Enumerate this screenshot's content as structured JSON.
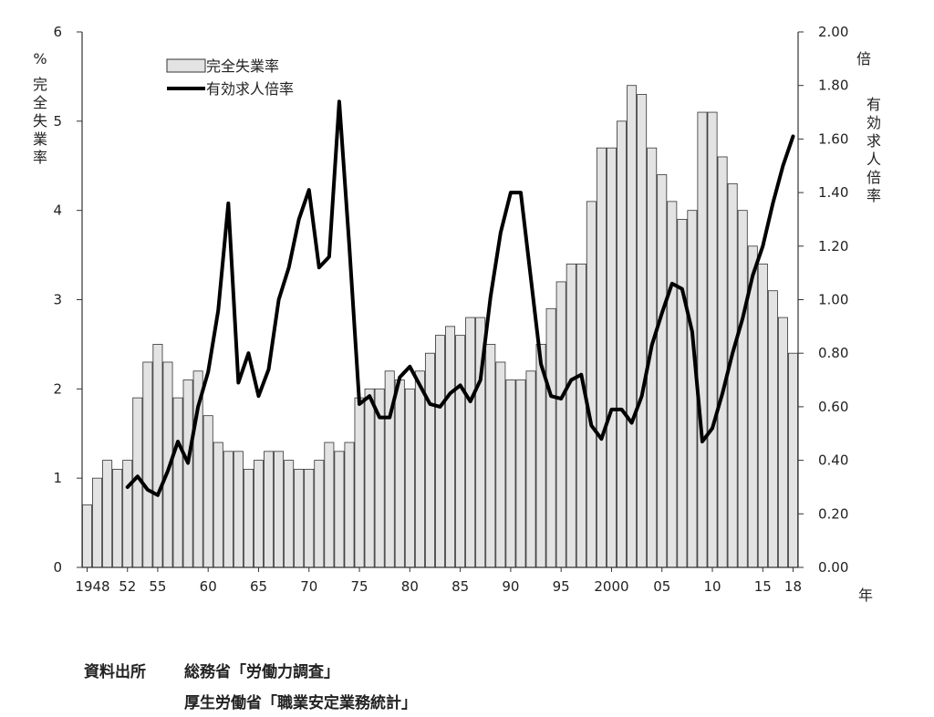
{
  "chart_data": {
    "type": "bar",
    "years": [
      1948,
      1949,
      1950,
      1951,
      1952,
      1953,
      1954,
      1955,
      1956,
      1957,
      1958,
      1959,
      1960,
      1961,
      1962,
      1963,
      1964,
      1965,
      1966,
      1967,
      1968,
      1969,
      1970,
      1971,
      1972,
      1973,
      1974,
      1975,
      1976,
      1977,
      1978,
      1979,
      1980,
      1981,
      1982,
      1983,
      1984,
      1985,
      1986,
      1987,
      1988,
      1989,
      1990,
      1991,
      1992,
      1993,
      1994,
      1995,
      1996,
      1997,
      1998,
      1999,
      2000,
      2001,
      2002,
      2003,
      2004,
      2005,
      2006,
      2007,
      2008,
      2009,
      2010,
      2011,
      2012,
      2013,
      2014,
      2015,
      2016,
      2017,
      2018
    ],
    "series": [
      {
        "name": "完全失業率",
        "type": "bar",
        "axis": "left",
        "values": [
          0.7,
          1.0,
          1.2,
          1.1,
          1.2,
          1.9,
          2.3,
          2.5,
          2.3,
          1.9,
          2.1,
          2.2,
          1.7,
          1.4,
          1.3,
          1.3,
          1.1,
          1.2,
          1.3,
          1.3,
          1.2,
          1.1,
          1.1,
          1.2,
          1.4,
          1.3,
          1.4,
          1.9,
          2.0,
          2.0,
          2.2,
          2.1,
          2.0,
          2.2,
          2.4,
          2.6,
          2.7,
          2.6,
          2.8,
          2.8,
          2.5,
          2.3,
          2.1,
          2.1,
          2.2,
          2.5,
          2.9,
          3.2,
          3.4,
          3.4,
          4.1,
          4.7,
          4.7,
          5.0,
          5.4,
          5.3,
          4.7,
          4.4,
          4.1,
          3.9,
          4.0,
          5.1,
          5.1,
          4.6,
          4.3,
          4.0,
          3.6,
          3.4,
          3.1,
          2.8,
          2.4
        ]
      },
      {
        "name": "有効求人倍率",
        "type": "line",
        "axis": "right",
        "start_year": 1952,
        "values": [
          0.3,
          0.34,
          0.29,
          0.27,
          0.36,
          0.47,
          0.39,
          0.6,
          0.73,
          0.96,
          1.36,
          0.69,
          0.8,
          0.64,
          0.74,
          1.0,
          1.12,
          1.3,
          1.41,
          1.12,
          1.16,
          1.74,
          1.2,
          0.61,
          0.64,
          0.56,
          0.56,
          0.71,
          0.75,
          0.68,
          0.61,
          0.6,
          0.65,
          0.68,
          0.62,
          0.7,
          1.01,
          1.25,
          1.4,
          1.4,
          1.08,
          0.76,
          0.64,
          0.63,
          0.7,
          0.72,
          0.53,
          0.48,
          0.59,
          0.59,
          0.54,
          0.64,
          0.83,
          0.95,
          1.06,
          1.04,
          0.88,
          0.47,
          0.52,
          0.65,
          0.8,
          0.93,
          1.09,
          1.2,
          1.36,
          1.5,
          1.61
        ]
      }
    ],
    "x_tick_labels": [
      "1948",
      "52",
      "55",
      "60",
      "65",
      "70",
      "75",
      "80",
      "85",
      "90",
      "95",
      "2000",
      "05",
      "10",
      "15",
      "18"
    ],
    "x_tick_years": [
      1948,
      1952,
      1955,
      1960,
      1965,
      1970,
      1975,
      1980,
      1985,
      1990,
      1995,
      2000,
      2005,
      2010,
      2015,
      2018
    ],
    "left_axis": {
      "label": "完全失業率",
      "unit": "%",
      "ylim": [
        0,
        6
      ],
      "ticks": [
        "0",
        "1",
        "2",
        "3",
        "4",
        "5",
        "6"
      ]
    },
    "right_axis": {
      "label": "有効求人倍率",
      "unit": "倍",
      "ylim": [
        0,
        2
      ],
      "ticks": [
        "0.00",
        "0.20",
        "0.40",
        "0.60",
        "0.80",
        "1.00",
        "1.20",
        "1.40",
        "1.60",
        "1.80",
        "2.00"
      ]
    },
    "x_unit": "年",
    "legend": {
      "placement": "top-left",
      "items": [
        "完全失業率",
        "有効求人倍率"
      ]
    },
    "grid": false,
    "colors": {
      "bar_fill": "#e3e3e3",
      "bar_stroke": "#333333",
      "line": "#000000",
      "axis": "#333333"
    }
  },
  "source": {
    "label": "資料出所",
    "line1": "総務省「労働力調査」",
    "line2": "厚生労働省「職業安定業務統計」"
  }
}
